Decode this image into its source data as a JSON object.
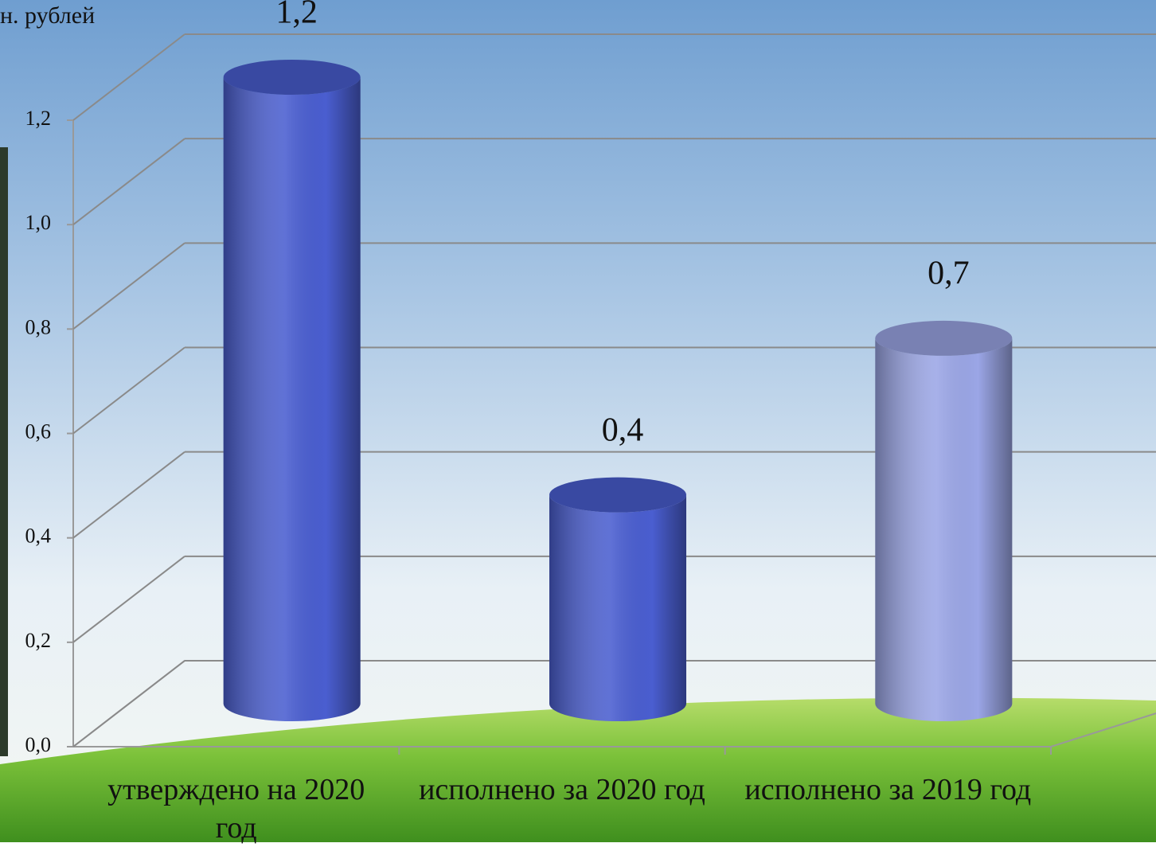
{
  "chart_data": {
    "type": "bar3d",
    "y_axis_label": "н. рублей",
    "categories": [
      "утверждено на 2020 год",
      "исполнено за 2020 год",
      "исполнено за 2019 год"
    ],
    "values": [
      1.2,
      0.4,
      0.7
    ],
    "value_labels": [
      "1,2",
      "0,4",
      "0,7"
    ],
    "colors": [
      "#4a5ed0",
      "#4a5ed0",
      "#9ba6e6"
    ],
    "ylim": [
      0,
      1.2
    ],
    "yticks": [
      {
        "value": 0,
        "label": "0,0"
      },
      {
        "value": 0.2,
        "label": "0,2"
      },
      {
        "value": 0.4,
        "label": "0,4"
      },
      {
        "value": 0.6,
        "label": "0,6"
      },
      {
        "value": 0.8,
        "label": "0,8"
      },
      {
        "value": 1.0,
        "label": "1,0"
      },
      {
        "value": 1.2,
        "label": "1,2"
      }
    ],
    "grid": true
  }
}
